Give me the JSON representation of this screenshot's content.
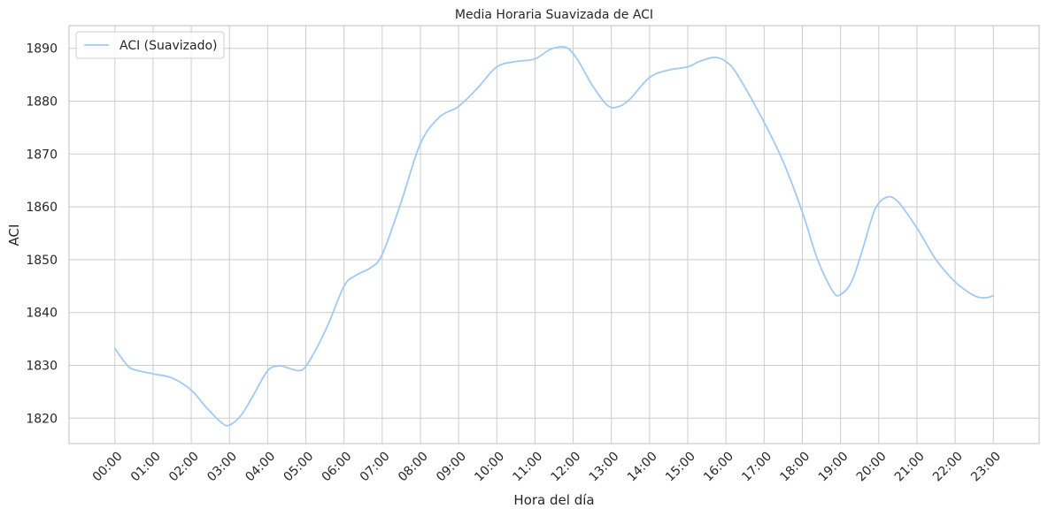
{
  "chart_data": {
    "type": "line",
    "title": "Media Horaria Suavizada de ACI",
    "xlabel": "Hora del día",
    "ylabel": "ACI",
    "categories": [
      "00:00",
      "01:00",
      "02:00",
      "03:00",
      "04:00",
      "05:00",
      "06:00",
      "07:00",
      "08:00",
      "09:00",
      "10:00",
      "11:00",
      "12:00",
      "13:00",
      "14:00",
      "15:00",
      "16:00",
      "17:00",
      "18:00",
      "19:00",
      "20:00",
      "21:00",
      "22:00",
      "23:00"
    ],
    "yticks": [
      1820,
      1830,
      1840,
      1850,
      1860,
      1870,
      1880,
      1890
    ],
    "ylim": [
      1815.2,
      1894.3
    ],
    "xlim": [
      -1.2,
      24.2
    ],
    "grid": true,
    "legend_position": "top-left",
    "series": [
      {
        "name": "ACI (Suavizado)",
        "color": "#a1c9f4",
        "x": [
          0,
          0.3,
          0.5,
          1.0,
          1.5,
          2.0,
          2.4,
          2.8,
          3.0,
          3.3,
          3.6,
          4.0,
          4.3,
          4.5,
          4.8,
          5.0,
          5.3,
          5.6,
          6.0,
          6.3,
          6.7,
          7.0,
          7.5,
          8.0,
          8.5,
          9.0,
          9.5,
          10.0,
          10.5,
          11.0,
          11.4,
          11.8,
          12.1,
          12.5,
          12.9,
          13.2,
          13.5,
          14.0,
          14.5,
          15.0,
          15.3,
          15.7,
          16.0,
          16.3,
          17.0,
          17.5,
          18.0,
          18.4,
          18.8,
          19.0,
          19.3,
          19.6,
          19.9,
          20.2,
          20.5,
          21.0,
          21.5,
          22.0,
          22.5,
          22.8,
          23.0
        ],
        "y": [
          1833.2,
          1830.2,
          1829.2,
          1828.4,
          1827.6,
          1825.3,
          1822.0,
          1819.1,
          1818.7,
          1820.5,
          1824.0,
          1829.0,
          1829.9,
          1829.6,
          1829.0,
          1829.8,
          1833.5,
          1838.0,
          1845.0,
          1847.0,
          1848.5,
          1851.0,
          1861.0,
          1872.0,
          1877.0,
          1879.0,
          1882.5,
          1886.5,
          1887.5,
          1888.0,
          1889.8,
          1890.2,
          1888.0,
          1883.0,
          1879.2,
          1879.0,
          1880.5,
          1884.5,
          1885.9,
          1886.5,
          1887.5,
          1888.3,
          1887.5,
          1885.0,
          1876.0,
          1868.5,
          1859.0,
          1850.0,
          1844.0,
          1843.4,
          1846.0,
          1852.5,
          1859.5,
          1861.8,
          1861.0,
          1856.0,
          1850.0,
          1845.8,
          1843.2,
          1842.8,
          1843.2
        ]
      }
    ]
  }
}
